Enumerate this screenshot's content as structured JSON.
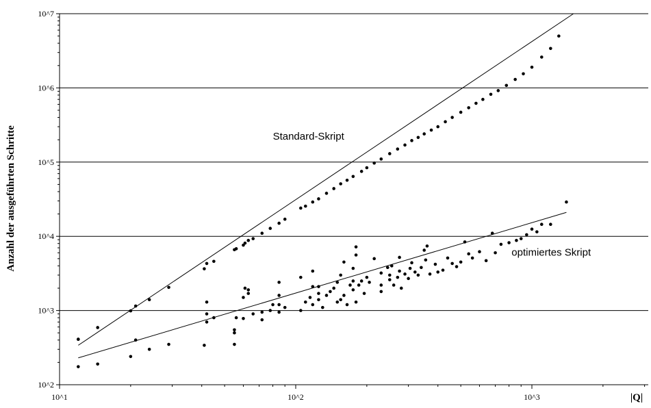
{
  "chart_data": {
    "type": "scatter",
    "x_scale": "log",
    "y_scale": "log",
    "xlim": [
      10,
      1500
    ],
    "ylim": [
      100,
      10000000
    ],
    "grid": "horizontal",
    "xlabel": "|Q|",
    "ylabel": "Anzahl der ausgeführten Schritte",
    "x_ticks": [
      {
        "value": 10,
        "label": "10^1"
      },
      {
        "value": 100,
        "label": "10^2"
      },
      {
        "value": 1000,
        "label": "10^3"
      }
    ],
    "y_ticks": [
      {
        "value": 100,
        "label": "10^2"
      },
      {
        "value": 1000,
        "label": "10^3"
      },
      {
        "value": 10000,
        "label": "10^4"
      },
      {
        "value": 100000,
        "label": "10^5"
      },
      {
        "value": 1000000,
        "label": "10^6"
      },
      {
        "value": 10000000,
        "label": "10^7"
      }
    ],
    "annotations": [
      {
        "text": "Standard-Skript",
        "x": 80,
        "y": 200000
      },
      {
        "text": "optimiertes Skript",
        "x": 820,
        "y": 5500
      }
    ],
    "trendlines": [
      {
        "series": "Standard-Skript",
        "from": [
          12,
          340
        ],
        "to": [
          1500,
          10000000
        ]
      },
      {
        "series": "optimiertes Skript",
        "from": [
          12,
          230
        ],
        "to": [
          1400,
          21000
        ]
      }
    ],
    "series": [
      {
        "name": "Standard-Skript",
        "points": [
          [
            12,
            410
          ],
          [
            14.5,
            590
          ],
          [
            20,
            990
          ],
          [
            21,
            1150
          ],
          [
            24,
            1400
          ],
          [
            29,
            2050
          ],
          [
            41,
            3650
          ],
          [
            42,
            4300
          ],
          [
            45,
            4600
          ],
          [
            55,
            6600
          ],
          [
            56,
            6800
          ],
          [
            60,
            7600
          ],
          [
            61,
            8100
          ],
          [
            63,
            8800
          ],
          [
            66,
            9300
          ],
          [
            72,
            11000
          ],
          [
            78,
            12800
          ],
          [
            85,
            15000
          ],
          [
            90,
            17000
          ],
          [
            105,
            24000
          ],
          [
            110,
            25500
          ],
          [
            118,
            29000
          ],
          [
            125,
            32000
          ],
          [
            135,
            38000
          ],
          [
            145,
            44000
          ],
          [
            155,
            51000
          ],
          [
            165,
            57000
          ],
          [
            175,
            64000
          ],
          [
            190,
            75000
          ],
          [
            200,
            84000
          ],
          [
            215,
            97000
          ],
          [
            230,
            110000
          ],
          [
            250,
            130000
          ],
          [
            270,
            150000
          ],
          [
            290,
            170000
          ],
          [
            310,
            195000
          ],
          [
            330,
            215000
          ],
          [
            350,
            240000
          ],
          [
            375,
            270000
          ],
          [
            400,
            300000
          ],
          [
            430,
            350000
          ],
          [
            460,
            400000
          ],
          [
            500,
            470000
          ],
          [
            540,
            540000
          ],
          [
            580,
            620000
          ],
          [
            620,
            700000
          ],
          [
            670,
            820000
          ],
          [
            720,
            920000
          ],
          [
            780,
            1080000
          ],
          [
            850,
            1300000
          ],
          [
            920,
            1550000
          ],
          [
            1000,
            1900000
          ],
          [
            1100,
            2600000
          ],
          [
            1200,
            3400000
          ],
          [
            1300,
            5000000
          ]
        ]
      },
      {
        "name": "optimiertes Skript",
        "points": [
          [
            12,
            175
          ],
          [
            12,
            410
          ],
          [
            14.5,
            190
          ],
          [
            20,
            240
          ],
          [
            21,
            400
          ],
          [
            24,
            300
          ],
          [
            29,
            350
          ],
          [
            41,
            340
          ],
          [
            42,
            700
          ],
          [
            42,
            900
          ],
          [
            42,
            1300
          ],
          [
            45,
            800
          ],
          [
            55,
            350
          ],
          [
            55,
            500
          ],
          [
            55,
            550
          ],
          [
            56,
            800
          ],
          [
            60,
            780
          ],
          [
            60,
            1500
          ],
          [
            61,
            2000
          ],
          [
            63,
            1700
          ],
          [
            63,
            1900
          ],
          [
            66,
            900
          ],
          [
            72,
            750
          ],
          [
            72,
            950
          ],
          [
            78,
            1000
          ],
          [
            80,
            1200
          ],
          [
            85,
            950
          ],
          [
            85,
            1200
          ],
          [
            85,
            1600
          ],
          [
            85,
            2400
          ],
          [
            90,
            1100
          ],
          [
            105,
            1000
          ],
          [
            105,
            2800
          ],
          [
            110,
            1300
          ],
          [
            115,
            1500
          ],
          [
            118,
            1200
          ],
          [
            118,
            2100
          ],
          [
            118,
            3400
          ],
          [
            125,
            1400
          ],
          [
            125,
            1700
          ],
          [
            125,
            2100
          ],
          [
            130,
            1100
          ],
          [
            135,
            1600
          ],
          [
            140,
            1800
          ],
          [
            145,
            2000
          ],
          [
            150,
            1300
          ],
          [
            150,
            2400
          ],
          [
            155,
            1400
          ],
          [
            155,
            3000
          ],
          [
            160,
            1600
          ],
          [
            160,
            4500
          ],
          [
            165,
            1200
          ],
          [
            170,
            2200
          ],
          [
            175,
            1900
          ],
          [
            175,
            2500
          ],
          [
            175,
            3700
          ],
          [
            180,
            1300
          ],
          [
            180,
            5600
          ],
          [
            180,
            7200
          ],
          [
            185,
            2200
          ],
          [
            190,
            2500
          ],
          [
            195,
            1700
          ],
          [
            200,
            2800
          ],
          [
            205,
            2400
          ],
          [
            215,
            5000
          ],
          [
            230,
            1800
          ],
          [
            230,
            2200
          ],
          [
            230,
            3200
          ],
          [
            245,
            3800
          ],
          [
            250,
            2600
          ],
          [
            250,
            3000
          ],
          [
            255,
            4000
          ],
          [
            260,
            2200
          ],
          [
            270,
            2800
          ],
          [
            275,
            3400
          ],
          [
            275,
            5200
          ],
          [
            280,
            2000
          ],
          [
            290,
            3100
          ],
          [
            300,
            2700
          ],
          [
            305,
            3700
          ],
          [
            310,
            4400
          ],
          [
            320,
            3300
          ],
          [
            330,
            3000
          ],
          [
            340,
            3800
          ],
          [
            350,
            6500
          ],
          [
            355,
            4800
          ],
          [
            360,
            7400
          ],
          [
            370,
            3100
          ],
          [
            390,
            4200
          ],
          [
            400,
            3300
          ],
          [
            420,
            3500
          ],
          [
            440,
            5100
          ],
          [
            460,
            4300
          ],
          [
            480,
            3900
          ],
          [
            500,
            4500
          ],
          [
            520,
            8400
          ],
          [
            540,
            5800
          ],
          [
            560,
            5100
          ],
          [
            600,
            6200
          ],
          [
            640,
            4700
          ],
          [
            680,
            11000
          ],
          [
            700,
            6000
          ],
          [
            740,
            7800
          ],
          [
            800,
            8200
          ],
          [
            860,
            8800
          ],
          [
            900,
            9300
          ],
          [
            950,
            10500
          ],
          [
            1000,
            12500
          ],
          [
            1050,
            11500
          ],
          [
            1100,
            14500
          ],
          [
            1200,
            14500
          ],
          [
            1400,
            29000
          ]
        ]
      }
    ]
  }
}
